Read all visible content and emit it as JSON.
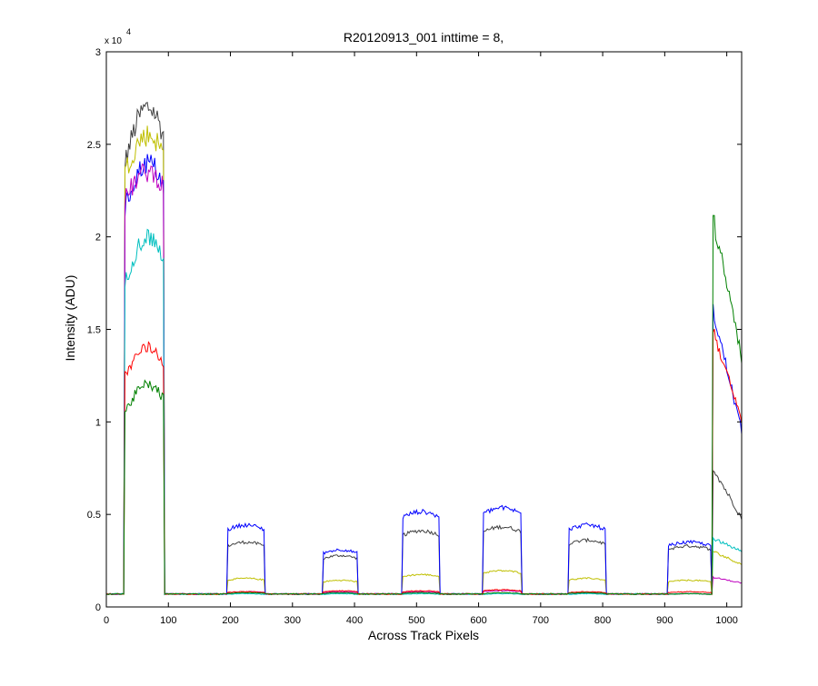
{
  "chart_data": {
    "type": "line",
    "title": "R20120913_001 inttime = 8,",
    "xlabel": "Across Track Pixels",
    "ylabel": "Intensity (ADU)",
    "y_exponent_label": "x 10",
    "y_exponent_power": "4",
    "xlim": [
      0,
      1024
    ],
    "ylim": [
      0,
      30000
    ],
    "x_ticks": [
      0,
      100,
      200,
      300,
      400,
      500,
      600,
      700,
      800,
      900,
      1000
    ],
    "x_tick_labels": [
      "0",
      "100",
      "200",
      "300",
      "400",
      "500",
      "600",
      "700",
      "800",
      "900",
      "1000"
    ],
    "y_ticks": [
      0,
      5000,
      10000,
      15000,
      20000,
      25000,
      30000
    ],
    "y_tick_labels": [
      "0",
      "0.5",
      "1",
      "1.5",
      "2",
      "2.5",
      "3"
    ],
    "grid": false,
    "baseline": 700,
    "segments": [
      {
        "start": 30,
        "end": 93
      },
      {
        "start": 195,
        "end": 255
      },
      {
        "start": 350,
        "end": 405
      },
      {
        "start": 478,
        "end": 537
      },
      {
        "start": 608,
        "end": 668
      },
      {
        "start": 745,
        "end": 805
      },
      {
        "start": 905,
        "end": 975
      },
      {
        "start": 978,
        "end": 1024
      }
    ],
    "series": [
      {
        "color": "#404040",
        "plateaus": [
          [
            24000,
            27000
          ],
          3400,
          2700,
          4000,
          4200,
          3500,
          3200,
          [
            7500,
            4800
          ]
        ]
      },
      {
        "color": "#bfbf00",
        "plateaus": [
          [
            23500,
            25500
          ],
          1500,
          1400,
          1700,
          1900,
          1500,
          1400,
          [
            3000,
            2300
          ]
        ]
      },
      {
        "color": "#0000ff",
        "plateaus": [
          [
            21500,
            24000
          ],
          4300,
          3000,
          5000,
          5200,
          4300,
          3400,
          [
            16000,
            9500
          ]
        ]
      },
      {
        "color": "#bf00bf",
        "plateaus": [
          [
            22000,
            23500
          ],
          800,
          800,
          800,
          850,
          750,
          700,
          [
            1600,
            1300
          ]
        ]
      },
      {
        "color": "#00bfbf",
        "plateaus": [
          [
            17500,
            20000
          ],
          700,
          700,
          700,
          700,
          700,
          700,
          [
            3700,
            3000
          ]
        ]
      },
      {
        "color": "#ff0000",
        "plateaus": [
          [
            12500,
            14000
          ],
          800,
          850,
          850,
          900,
          800,
          800,
          [
            15000,
            10000
          ]
        ]
      },
      {
        "color": "#008000",
        "plateaus": [
          [
            10500,
            12000
          ],
          750,
          750,
          750,
          750,
          750,
          700,
          [
            21000,
            13500
          ]
        ]
      }
    ]
  }
}
